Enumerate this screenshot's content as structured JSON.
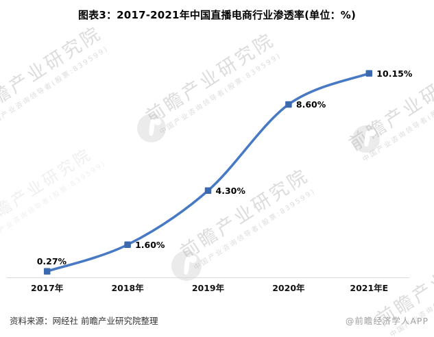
{
  "title": "图表3：2017-2021年中国直播电商行业渗透率(单位：%)",
  "chart_data": {
    "type": "line",
    "categories": [
      "2017年",
      "2018年",
      "2019年",
      "2020年",
      "2021年E"
    ],
    "values": [
      0.27,
      1.6,
      4.3,
      8.6,
      10.15
    ],
    "labels": [
      "0.27%",
      "1.60%",
      "4.30%",
      "8.60%",
      "10.15%"
    ],
    "title": "图表3：2017-2021年中国直播电商行业渗透率(单位：%)",
    "xlabel": "",
    "ylabel": "",
    "ylim": [
      0,
      12
    ],
    "grid": false,
    "legend": "none",
    "line_color": "#4779C4",
    "marker_color": "#3A69B0",
    "axis_color": "#D9D9D9"
  },
  "footer": {
    "source": "资料来源：网经社 前瞻产业研究院整理",
    "credit": "@前瞻经济学人APP"
  },
  "watermark": {
    "text": "前瞻产业研究院",
    "subtext": "中国产业咨询领导者(股票:839599)"
  }
}
